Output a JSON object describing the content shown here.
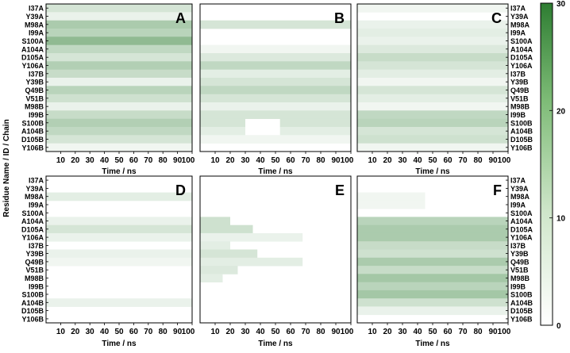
{
  "chart_data": {
    "type": "heatmap",
    "ylabel": "Residue Name / ID / Chain",
    "xlabel": "Time / ns",
    "x_ticks": [
      "10",
      "20",
      "30",
      "40",
      "50",
      "60",
      "70",
      "80",
      "90",
      "100"
    ],
    "xlim": [
      0,
      100
    ],
    "residues": [
      "I37A",
      "Y39A",
      "M98A",
      "I99A",
      "S100A",
      "A104A",
      "D105A",
      "Y106A",
      "I37B",
      "Y39B",
      "Q49B",
      "V51B",
      "M98B",
      "I99B",
      "S100B",
      "A104B",
      "D105B",
      "Y106B"
    ],
    "colorbar": {
      "min": 0,
      "max": 30,
      "ticks": [
        "0",
        "10",
        "20",
        "30"
      ],
      "low_color": "#ffffff",
      "high_color": "#2e7d32"
    },
    "panels": [
      {
        "label": "A",
        "segments": [
          [
            [
              0,
              100,
              6
            ]
          ],
          [
            [
              0,
              100,
              3
            ]
          ],
          [
            [
              0,
              100,
              12
            ]
          ],
          [
            [
              0,
              100,
              10
            ]
          ],
          [
            [
              0,
              100,
              16
            ]
          ],
          [
            [
              0,
              100,
              9
            ]
          ],
          [
            [
              0,
              100,
              6
            ]
          ],
          [
            [
              0,
              100,
              11
            ]
          ],
          [
            [
              0,
              100,
              8
            ]
          ],
          [
            [
              0,
              100,
              3
            ]
          ],
          [
            [
              0,
              100,
              10
            ]
          ],
          [
            [
              0,
              100,
              7
            ]
          ],
          [
            [
              0,
              100,
              3
            ]
          ],
          [
            [
              0,
              100,
              8
            ]
          ],
          [
            [
              0,
              100,
              11
            ]
          ],
          [
            [
              0,
              100,
              9
            ]
          ],
          [
            [
              0,
              100,
              6
            ]
          ],
          [
            [
              0,
              100,
              2
            ]
          ]
        ]
      },
      {
        "label": "B",
        "segments": [
          [],
          [],
          [
            [
              0,
              100,
              6
            ]
          ],
          [],
          [],
          [
            [
              0,
              100,
              2
            ]
          ],
          [
            [
              0,
              100,
              5
            ]
          ],
          [
            [
              0,
              100,
              9
            ]
          ],
          [
            [
              0,
              100,
              4
            ]
          ],
          [
            [
              0,
              100,
              6
            ]
          ],
          [
            [
              0,
              100,
              9
            ]
          ],
          [
            [
              0,
              100,
              6
            ]
          ],
          [
            [
              0,
              100,
              3
            ]
          ],
          [
            [
              0,
              100,
              6
            ]
          ],
          [
            [
              0,
              30,
              6
            ],
            [
              53,
              100,
              6
            ]
          ],
          [
            [
              0,
              30,
              4
            ],
            [
              53,
              100,
              4
            ]
          ],
          [
            [
              0,
              100,
              2
            ]
          ],
          []
        ]
      },
      {
        "label": "C",
        "segments": [
          [
            [
              0,
              100,
              2
            ]
          ],
          [],
          [
            [
              0,
              100,
              3
            ]
          ],
          [
            [
              0,
              100,
              4
            ]
          ],
          [
            [
              0,
              100,
              3
            ]
          ],
          [
            [
              0,
              100,
              5
            ]
          ],
          [
            [
              0,
              100,
              8
            ]
          ],
          [
            [
              0,
              100,
              6
            ]
          ],
          [
            [
              0,
              100,
              4
            ]
          ],
          [
            [
              0,
              100,
              2
            ]
          ],
          [
            [
              0,
              100,
              6
            ]
          ],
          [
            [
              0,
              100,
              4
            ]
          ],
          [
            [
              0,
              100,
              2
            ]
          ],
          [
            [
              0,
              100,
              9
            ]
          ],
          [
            [
              0,
              100,
              10
            ]
          ],
          [
            [
              0,
              100,
              6
            ]
          ],
          [
            [
              0,
              100,
              7
            ]
          ],
          [
            [
              0,
              100,
              2
            ]
          ]
        ]
      },
      {
        "label": "D",
        "segments": [
          [],
          [],
          [
            [
              0,
              100,
              4
            ]
          ],
          [],
          [],
          [
            [
              0,
              100,
              3
            ]
          ],
          [
            [
              0,
              100,
              6
            ]
          ],
          [
            [
              0,
              100,
              3
            ]
          ],
          [],
          [
            [
              0,
              100,
              3
            ]
          ],
          [
            [
              0,
              100,
              2
            ]
          ],
          [],
          [],
          [],
          [],
          [
            [
              0,
              100,
              3
            ]
          ],
          [],
          []
        ]
      },
      {
        "label": "E",
        "segments": [
          [],
          [],
          [],
          [],
          [],
          [
            [
              0,
              20,
              7
            ]
          ],
          [
            [
              0,
              35,
              7
            ]
          ],
          [
            [
              0,
              68,
              3
            ]
          ],
          [
            [
              0,
              20,
              4
            ]
          ],
          [
            [
              0,
              38,
              6
            ]
          ],
          [
            [
              0,
              68,
              4
            ]
          ],
          [
            [
              0,
              25,
              5
            ]
          ],
          [
            [
              0,
              15,
              4
            ]
          ],
          [],
          [],
          [],
          [],
          []
        ]
      },
      {
        "label": "F",
        "segments": [
          [],
          [],
          [
            [
              0,
              45,
              2
            ]
          ],
          [
            [
              0,
              45,
              2
            ]
          ],
          [],
          [
            [
              0,
              100,
              10
            ]
          ],
          [
            [
              0,
              100,
              12
            ]
          ],
          [
            [
              0,
              100,
              12
            ]
          ],
          [
            [
              0,
              100,
              8
            ]
          ],
          [
            [
              0,
              100,
              7
            ]
          ],
          [
            [
              0,
              100,
              12
            ]
          ],
          [
            [
              0,
              100,
              8
            ]
          ],
          [
            [
              0,
              100,
              13
            ]
          ],
          [
            [
              0,
              100,
              10
            ]
          ],
          [
            [
              0,
              100,
              13
            ]
          ],
          [
            [
              0,
              100,
              7
            ]
          ],
          [
            [
              0,
              100,
              3
            ]
          ],
          []
        ]
      }
    ]
  }
}
